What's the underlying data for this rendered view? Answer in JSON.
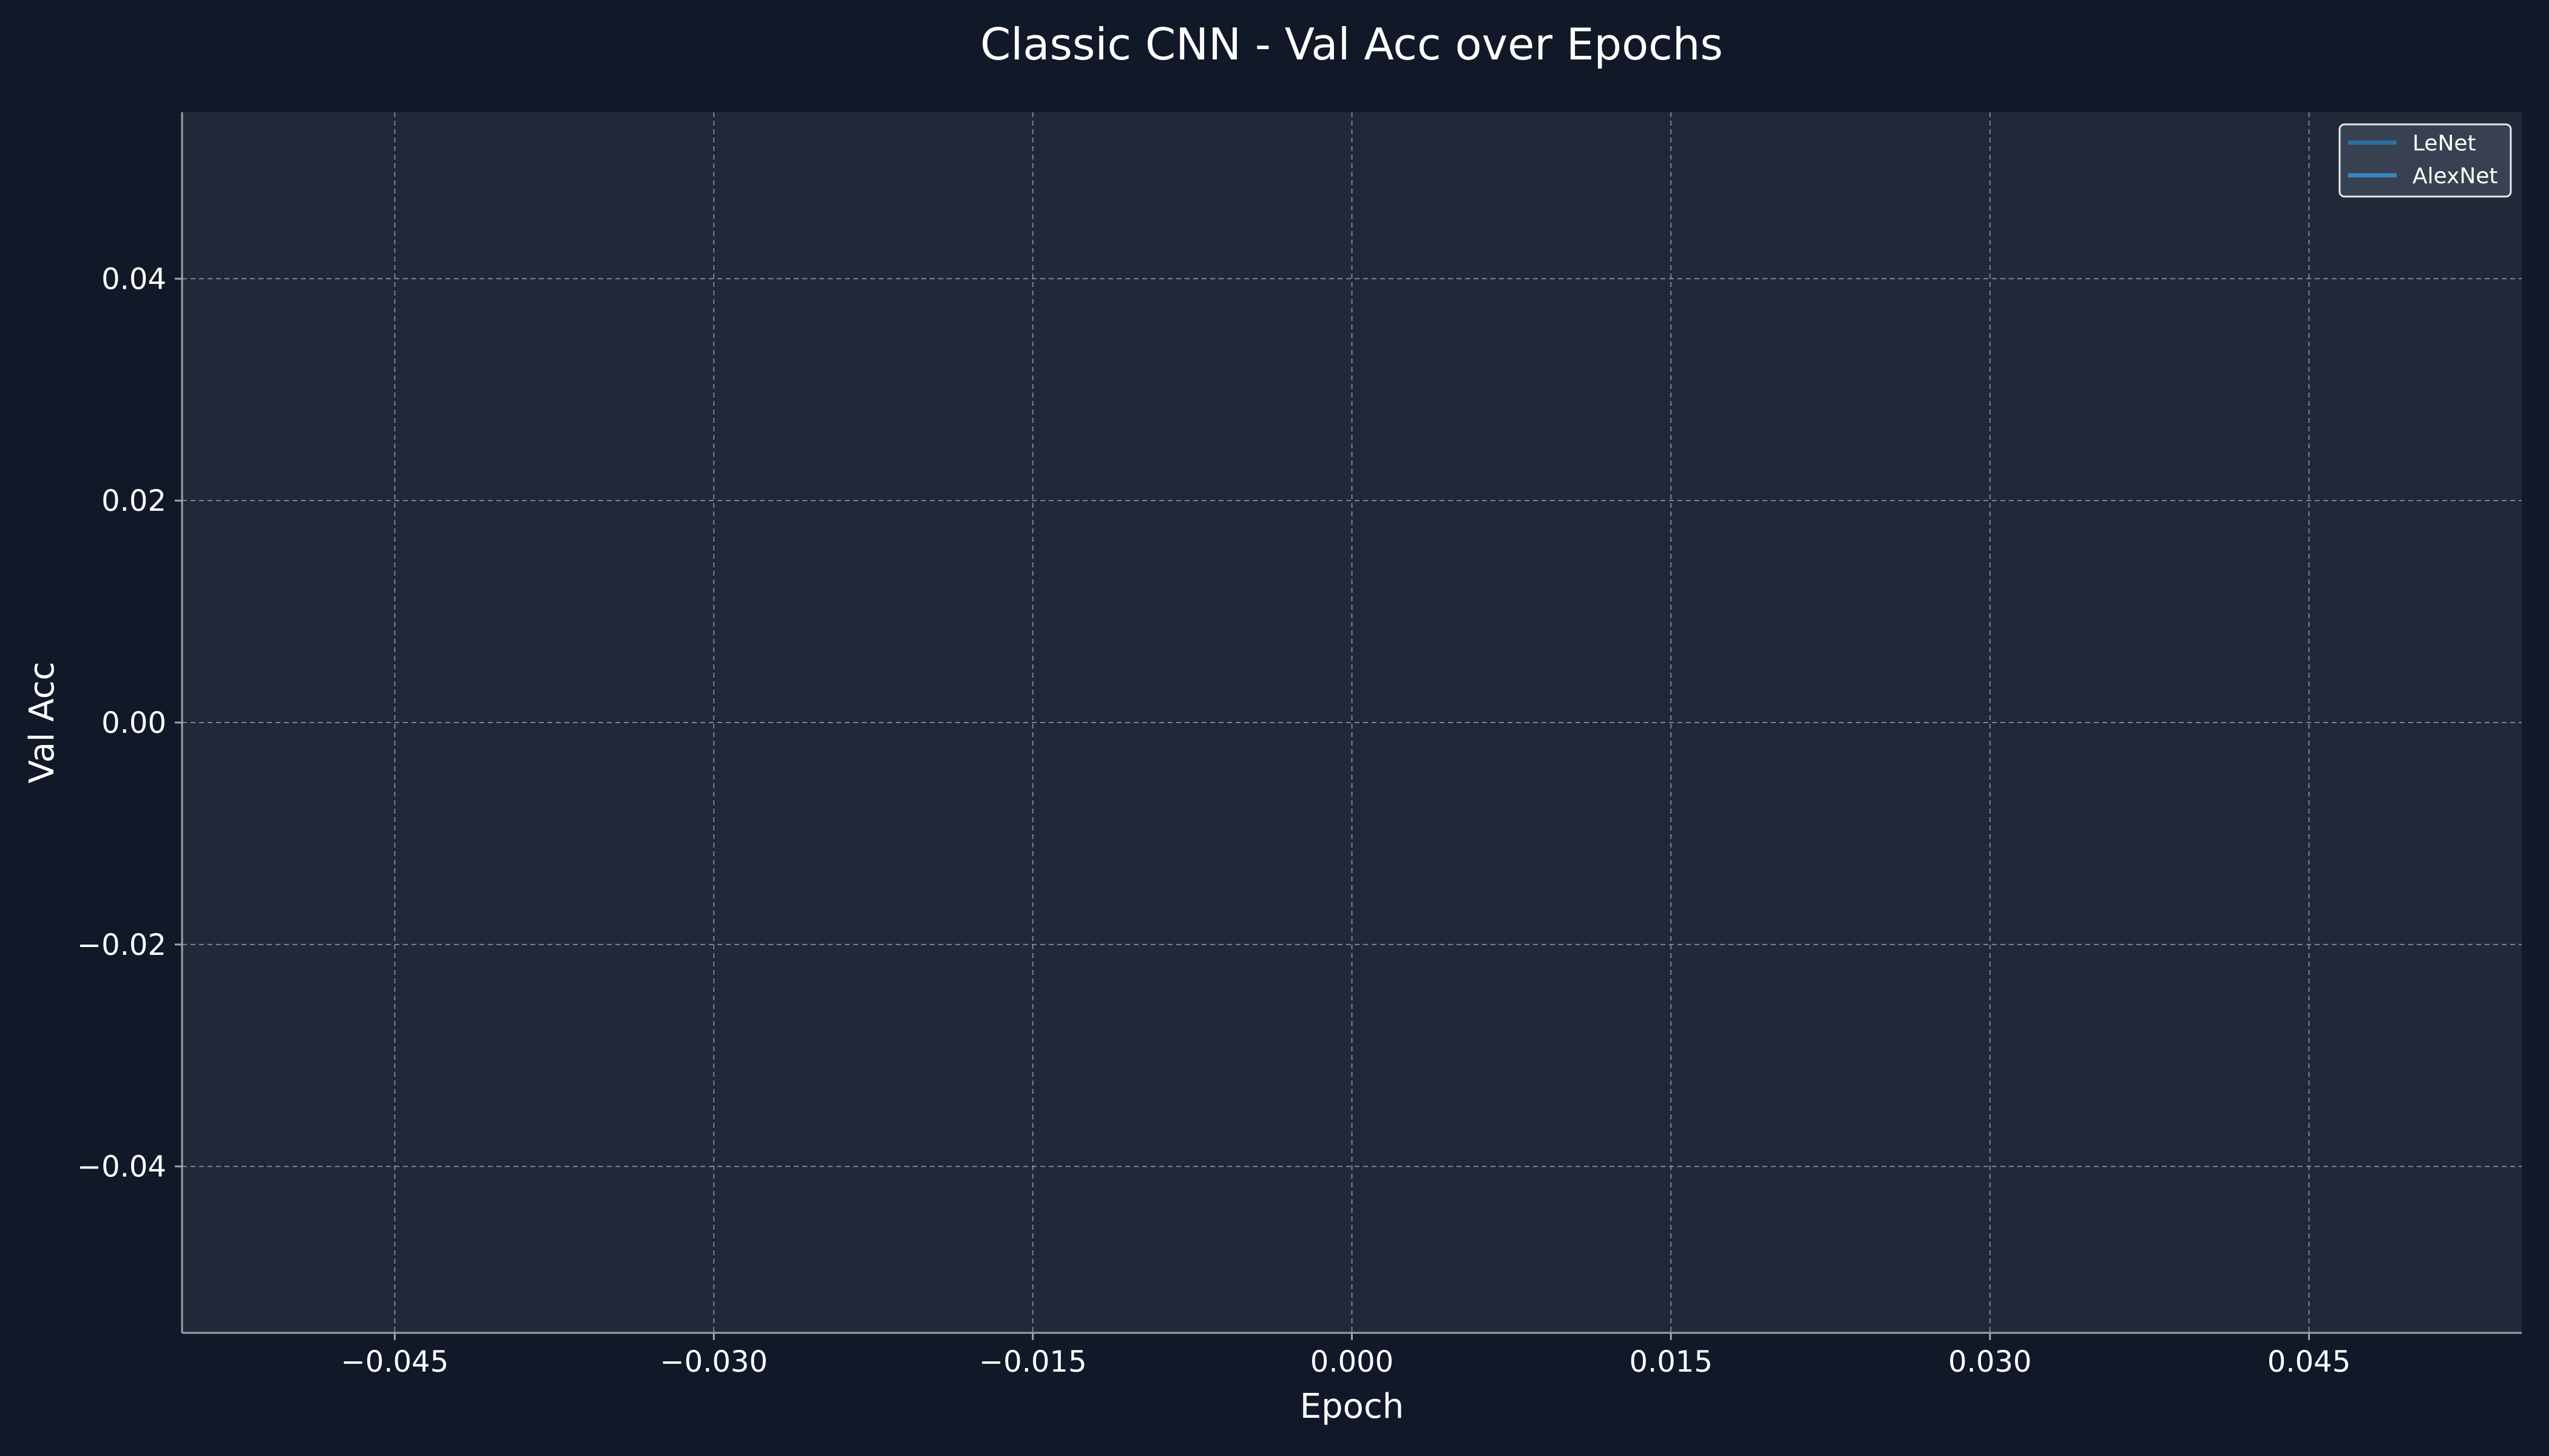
{
  "chart_data": {
    "type": "line",
    "title": "Classic CNN - Val Acc over Epochs",
    "xlabel": "Epoch",
    "ylabel": "Val Acc",
    "xlim": [
      -0.055,
      0.055
    ],
    "ylim": [
      -0.055,
      0.055
    ],
    "x_ticks": [
      -0.045,
      -0.03,
      -0.015,
      0.0,
      0.015,
      0.03,
      0.045
    ],
    "x_tick_labels": [
      "−0.045",
      "−0.030",
      "−0.015",
      "0.000",
      "0.015",
      "0.030",
      "0.045"
    ],
    "y_ticks": [
      0.04,
      0.02,
      0.0,
      -0.02,
      -0.04
    ],
    "y_tick_labels": [
      "0.04",
      "0.02",
      "0.00",
      "−0.02",
      "−0.04"
    ],
    "grid": true,
    "legend_position": "top-right",
    "series": [
      {
        "name": "LeNet",
        "x": [],
        "y": [],
        "color": "#2f6f9f"
      },
      {
        "name": "AlexNet",
        "x": [],
        "y": [],
        "color": "#3a86c0"
      }
    ],
    "colors": {
      "background": "#111827",
      "plot_background": "#1f2937",
      "grid": "#9ca3af",
      "spine": "#9ca3af",
      "text": "#ffffff",
      "legend_background": "#374151",
      "legend_border": "#e5e7eb"
    }
  }
}
